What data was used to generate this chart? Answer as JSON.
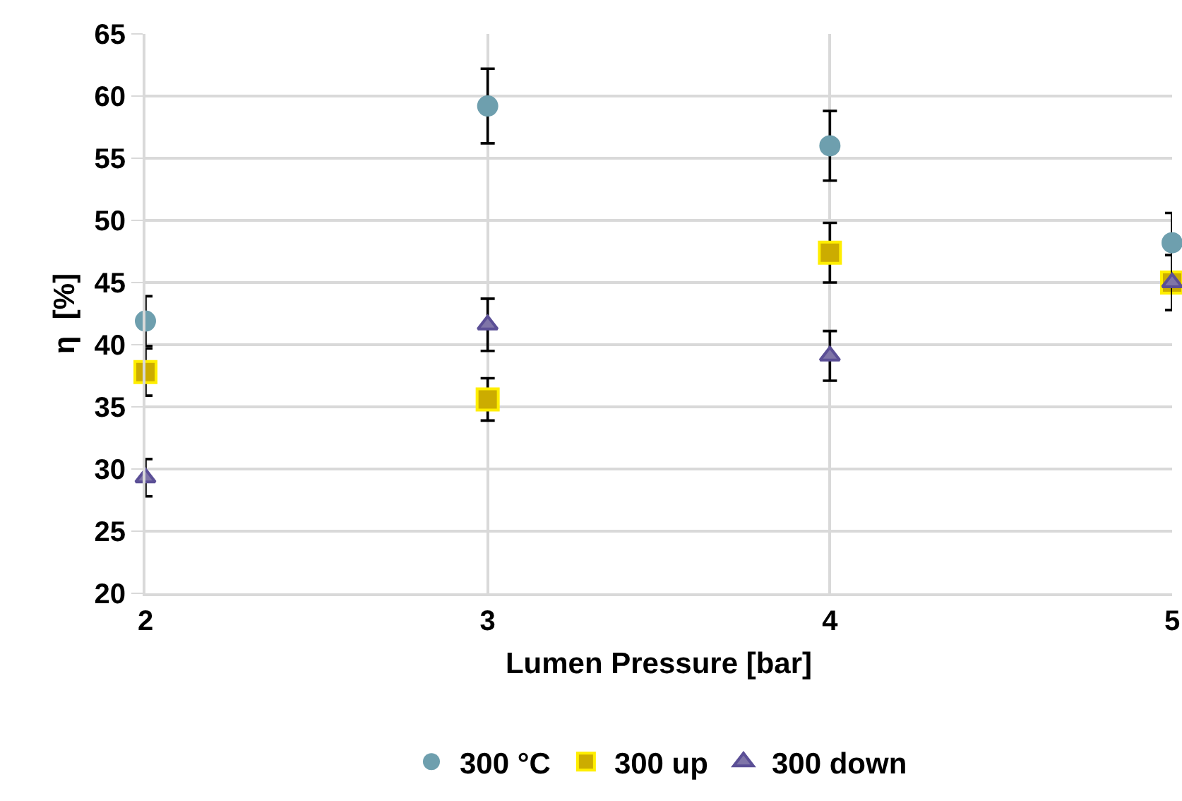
{
  "chart_data": {
    "type": "scatter",
    "xlabel": "Lumen Pressure [bar]",
    "ylabel": "η  [%]",
    "x": [
      2,
      3,
      4,
      5
    ],
    "xlim": [
      2,
      5
    ],
    "xticks": [
      2,
      3,
      4,
      5
    ],
    "ylim": [
      20,
      65
    ],
    "yticks": [
      20,
      25,
      30,
      35,
      40,
      45,
      50,
      55,
      60,
      65
    ],
    "grid": true,
    "legend": "bottom",
    "series": [
      {
        "name": "300 °C",
        "color": "#6e9fae",
        "marker": "circle",
        "values": [
          41.9,
          59.2,
          56.0,
          48.2
        ],
        "errors": [
          2.0,
          3.0,
          2.8,
          2.4
        ]
      },
      {
        "name": "300 up",
        "color": "#ccac00",
        "marker": "square",
        "values": [
          37.8,
          35.6,
          47.4,
          45.0
        ],
        "errors": [
          1.9,
          1.7,
          2.4,
          2.2
        ]
      },
      {
        "name": "300 down",
        "color": "#7f75a8",
        "marker": "triangle",
        "values": [
          29.3,
          41.6,
          39.1,
          45.0
        ],
        "errors": [
          1.5,
          2.1,
          2.0,
          2.2
        ]
      }
    ]
  }
}
